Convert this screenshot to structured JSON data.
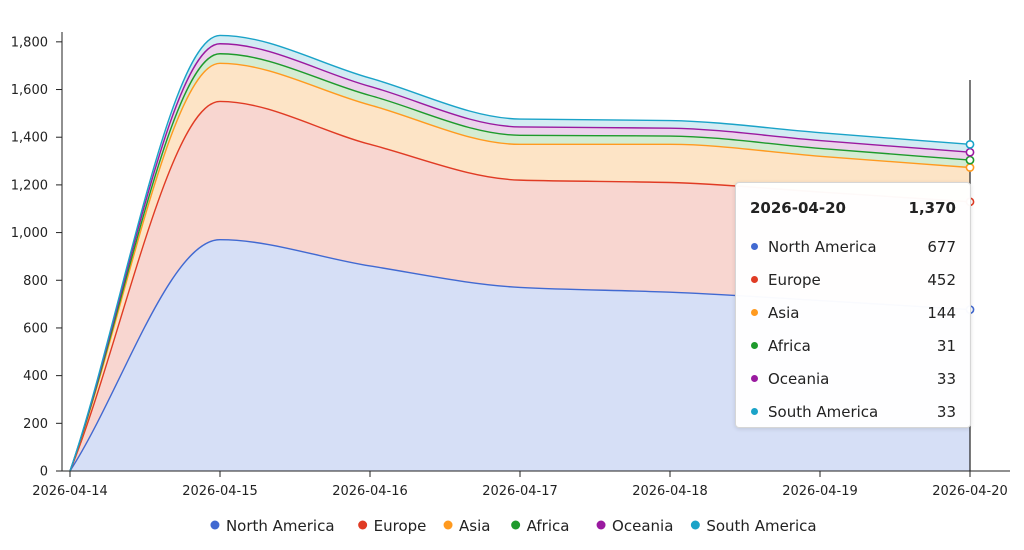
{
  "chart_data": {
    "type": "area",
    "stacked": true,
    "x": [
      "2026-04-14",
      "2026-04-15",
      "2026-04-16",
      "2026-04-17",
      "2026-04-18",
      "2026-04-19",
      "2026-04-20"
    ],
    "series": [
      {
        "name": "North America",
        "color": "#4169d1",
        "fill": "#d6dff6",
        "values": [
          0,
          970,
          860,
          770,
          750,
          715,
          677
        ]
      },
      {
        "name": "Europe",
        "color": "#e03b24",
        "fill": "#f8d6d0",
        "values": [
          0,
          580,
          510,
          450,
          460,
          455,
          452
        ]
      },
      {
        "name": "Asia",
        "color": "#ff9a1f",
        "fill": "#fde4c6",
        "values": [
          0,
          160,
          165,
          150,
          160,
          150,
          144
        ]
      },
      {
        "name": "Africa",
        "color": "#1e9a2c",
        "fill": "#d5ecd2",
        "values": [
          0,
          40,
          40,
          38,
          35,
          33,
          31
        ]
      },
      {
        "name": "Oceania",
        "color": "#9a1aa0",
        "fill": "#ecd3ec",
        "values": [
          0,
          42,
          38,
          35,
          33,
          33,
          33
        ]
      },
      {
        "name": "South America",
        "color": "#1aa3c8",
        "fill": "#d3ecf3",
        "values": [
          0,
          35,
          35,
          33,
          32,
          33,
          33
        ]
      }
    ],
    "y_ticks": [
      "0",
      "200",
      "400",
      "600",
      "800",
      "1,000",
      "1,200",
      "1,400",
      "1,600",
      "1,800"
    ],
    "y_tick_values": [
      0,
      200,
      400,
      600,
      800,
      1000,
      1200,
      1400,
      1600,
      1800
    ],
    "ylim": [
      0,
      1900
    ],
    "grid": false,
    "legend": "bottom-center",
    "tooltip": {
      "x": "2026-04-20",
      "total": "1,370",
      "rows": [
        {
          "name": "North America",
          "value": "677",
          "color": "#4169d1"
        },
        {
          "name": "Europe",
          "value": "452",
          "color": "#e03b24"
        },
        {
          "name": "Asia",
          "value": "144",
          "color": "#ff9a1f"
        },
        {
          "name": "Africa",
          "value": "31",
          "color": "#1e9a2c"
        },
        {
          "name": "Oceania",
          "value": "33",
          "color": "#9a1aa0"
        },
        {
          "name": "South America",
          "value": "33",
          "color": "#1aa3c8"
        }
      ]
    }
  }
}
